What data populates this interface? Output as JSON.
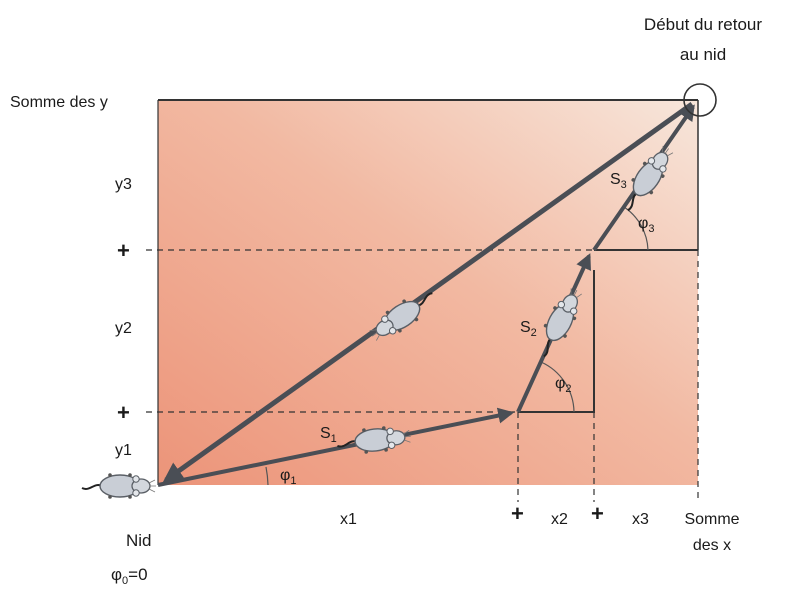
{
  "labels": {
    "start_return_line1": "Début du retour",
    "start_return_line2": "au nid",
    "sum_y": "Somme des y",
    "y3": "y3",
    "y2": "y2",
    "y1": "y1",
    "plus": "+",
    "x1": "x1",
    "x2": "x2",
    "x3": "x3",
    "sum_x_line1": "Somme",
    "sum_x_line2": "des x",
    "nest": "Nid",
    "phi0_symbol": "φ",
    "phi0_sub": "0",
    "phi0_value": "=0"
  },
  "segments": [
    {
      "symbol": "S",
      "index": "1",
      "angle_symbol": "φ",
      "angle_index": "1"
    },
    {
      "symbol": "S",
      "index": "2",
      "angle_symbol": "φ",
      "angle_index": "2"
    },
    {
      "symbol": "S",
      "index": "3",
      "angle_symbol": "φ",
      "angle_index": "3"
    }
  ],
  "colors": {
    "gradient_left": "#ee9e83",
    "gradient_right": "#f6e0d4",
    "arrow": "#4a4e55",
    "mouse_body": "#c9ced6"
  }
}
